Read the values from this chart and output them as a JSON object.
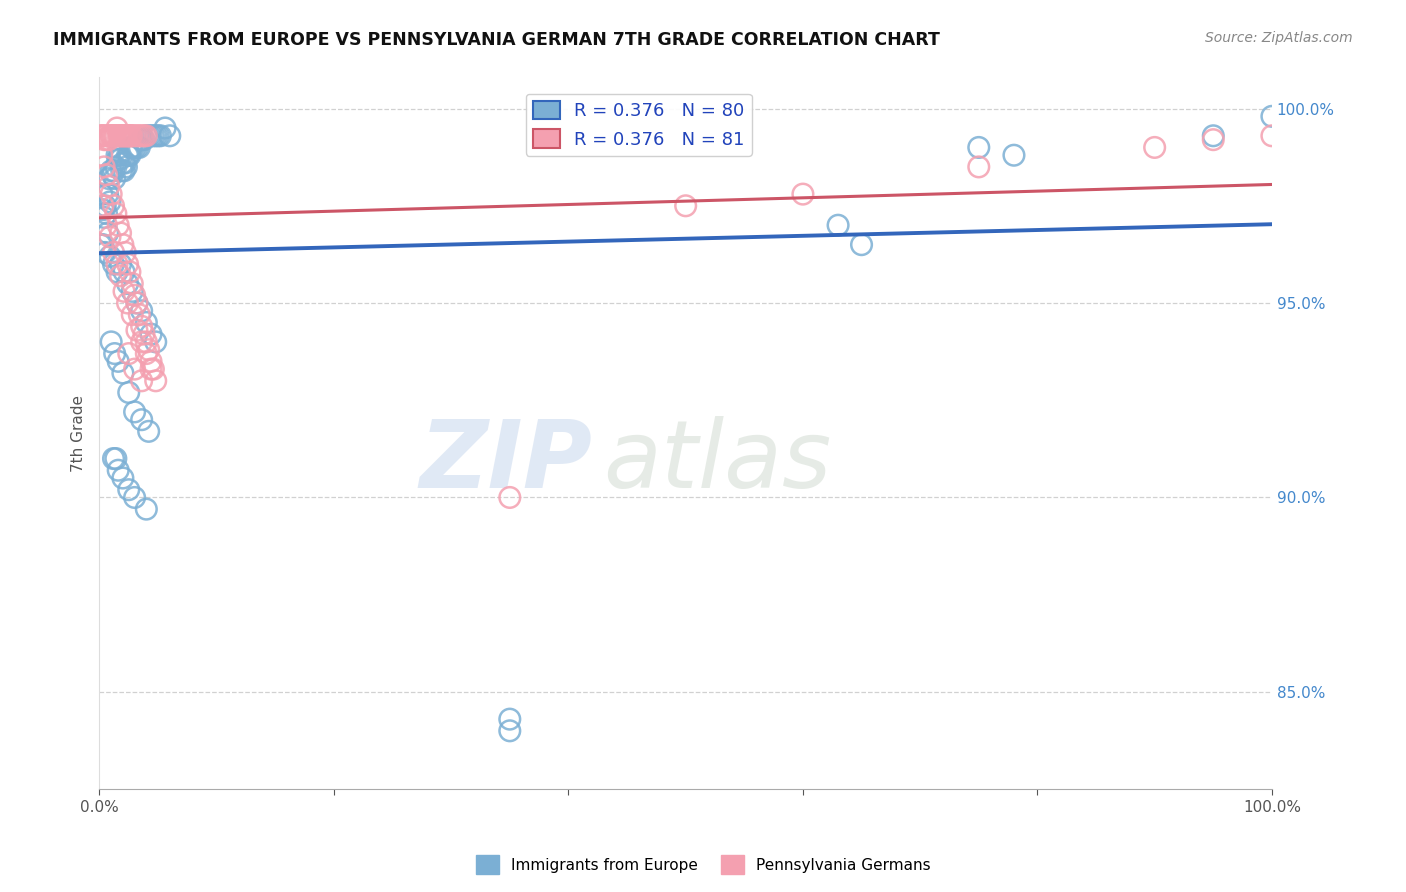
{
  "title": "IMMIGRANTS FROM EUROPE VS PENNSYLVANIA GERMAN 7TH GRADE CORRELATION CHART",
  "source": "Source: ZipAtlas.com",
  "ylabel": "7th Grade",
  "ytick_vals": [
    1.0,
    0.95,
    0.9,
    0.85
  ],
  "ytick_labels": [
    "100.0%",
    "95.0%",
    "90.0%",
    "85.0%"
  ],
  "legend_blue_r": "0.376",
  "legend_blue_n": "80",
  "legend_pink_r": "0.376",
  "legend_pink_n": "81",
  "blue_color": "#7bafd4",
  "pink_color": "#f4a0b0",
  "blue_line_color": "#3366bb",
  "pink_line_color": "#cc5566",
  "watermark_zip": "ZIP",
  "watermark_atlas": "atlas",
  "xlim": [
    0.0,
    1.0
  ],
  "ylim": [
    0.825,
    1.008
  ],
  "blue_x": [
    0.002,
    0.003,
    0.004,
    0.005,
    0.006,
    0.007,
    0.008,
    0.009,
    0.01,
    0.011,
    0.012,
    0.013,
    0.014,
    0.015,
    0.016,
    0.017,
    0.018,
    0.019,
    0.02,
    0.021,
    0.022,
    0.023,
    0.024,
    0.025,
    0.026,
    0.027,
    0.028,
    0.03,
    0.032,
    0.034,
    0.036,
    0.038,
    0.04,
    0.042,
    0.044,
    0.046,
    0.048,
    0.05,
    0.052,
    0.056,
    0.06,
    0.003,
    0.005,
    0.007,
    0.009,
    0.012,
    0.015,
    0.018,
    0.021,
    0.024,
    0.028,
    0.032,
    0.036,
    0.04,
    0.044,
    0.048,
    0.01,
    0.013,
    0.016,
    0.02,
    0.025,
    0.03,
    0.036,
    0.042,
    0.001,
    0.63,
    0.65,
    0.75,
    0.78,
    0.95,
    1.0,
    0.35,
    0.012,
    0.014,
    0.016,
    0.02,
    0.025,
    0.03,
    0.04,
    0.35
  ],
  "blue_y": [
    0.978,
    0.974,
    0.972,
    0.975,
    0.973,
    0.978,
    0.982,
    0.976,
    0.984,
    0.983,
    0.984,
    0.982,
    0.985,
    0.988,
    0.987,
    0.988,
    0.987,
    0.984,
    0.986,
    0.984,
    0.986,
    0.985,
    0.988,
    0.988,
    0.988,
    0.99,
    0.99,
    0.99,
    0.99,
    0.99,
    0.992,
    0.992,
    0.993,
    0.993,
    0.993,
    0.993,
    0.993,
    0.993,
    0.993,
    0.995,
    0.993,
    0.965,
    0.963,
    0.968,
    0.962,
    0.96,
    0.958,
    0.96,
    0.958,
    0.955,
    0.953,
    0.95,
    0.948,
    0.945,
    0.942,
    0.94,
    0.94,
    0.937,
    0.935,
    0.932,
    0.927,
    0.922,
    0.92,
    0.917,
    0.965,
    0.97,
    0.965,
    0.99,
    0.988,
    0.993,
    0.998,
    0.84,
    0.91,
    0.91,
    0.907,
    0.905,
    0.902,
    0.9,
    0.897,
    0.843
  ],
  "pink_x": [
    0.001,
    0.002,
    0.003,
    0.004,
    0.005,
    0.006,
    0.007,
    0.008,
    0.009,
    0.01,
    0.011,
    0.012,
    0.013,
    0.014,
    0.015,
    0.016,
    0.017,
    0.018,
    0.019,
    0.02,
    0.021,
    0.022,
    0.023,
    0.024,
    0.025,
    0.026,
    0.027,
    0.028,
    0.03,
    0.032,
    0.034,
    0.036,
    0.038,
    0.04,
    0.002,
    0.004,
    0.006,
    0.008,
    0.01,
    0.012,
    0.014,
    0.016,
    0.018,
    0.02,
    0.022,
    0.024,
    0.026,
    0.028,
    0.03,
    0.032,
    0.034,
    0.036,
    0.038,
    0.04,
    0.042,
    0.044,
    0.046,
    0.048,
    0.003,
    0.006,
    0.009,
    0.012,
    0.015,
    0.018,
    0.021,
    0.024,
    0.028,
    0.032,
    0.036,
    0.04,
    0.044,
    0.025,
    0.03,
    0.036,
    0.35,
    0.5,
    0.6,
    0.75,
    0.9,
    0.95,
    1.0
  ],
  "pink_y": [
    0.993,
    0.993,
    0.993,
    0.992,
    0.993,
    0.992,
    0.993,
    0.992,
    0.993,
    0.993,
    0.993,
    0.993,
    0.993,
    0.993,
    0.995,
    0.993,
    0.993,
    0.993,
    0.993,
    0.993,
    0.993,
    0.993,
    0.993,
    0.993,
    0.993,
    0.993,
    0.993,
    0.993,
    0.993,
    0.993,
    0.993,
    0.993,
    0.993,
    0.993,
    0.988,
    0.985,
    0.983,
    0.98,
    0.978,
    0.975,
    0.973,
    0.97,
    0.968,
    0.965,
    0.963,
    0.96,
    0.958,
    0.955,
    0.952,
    0.95,
    0.947,
    0.944,
    0.942,
    0.94,
    0.938,
    0.935,
    0.933,
    0.93,
    0.975,
    0.97,
    0.967,
    0.963,
    0.96,
    0.957,
    0.953,
    0.95,
    0.947,
    0.943,
    0.94,
    0.937,
    0.933,
    0.937,
    0.933,
    0.93,
    0.9,
    0.975,
    0.978,
    0.985,
    0.99,
    0.992,
    0.993
  ]
}
